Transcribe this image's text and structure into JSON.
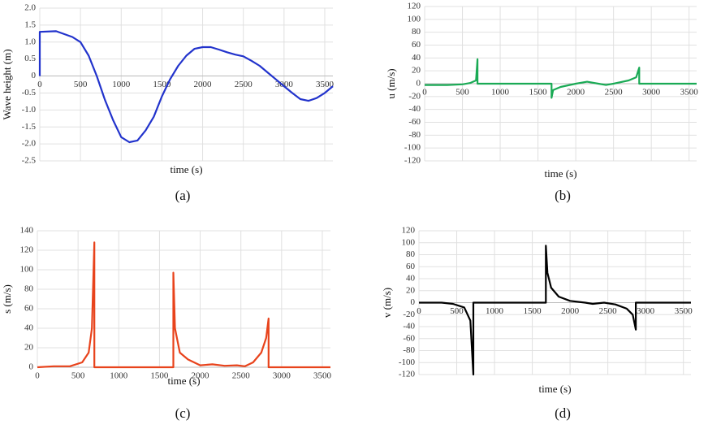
{
  "chart_data": [
    {
      "type": "line",
      "caption": "(a)",
      "ylabel": "Wave height (m)",
      "xlabel": "time (s)",
      "color": "#2233cc",
      "grid": true,
      "xlim": [
        0,
        3600
      ],
      "xticks": [
        0,
        500,
        1000,
        1500,
        2000,
        2500,
        3000,
        3500
      ],
      "ylim": [
        -2.5,
        2.0
      ],
      "yticks": [
        {
          "value": 2,
          "label": "2.0"
        },
        1.5,
        {
          "value": 1,
          "label": "1.0"
        },
        0.5,
        0,
        -0.5,
        {
          "value": -1,
          "label": "-1.0"
        },
        -1.5,
        {
          "value": -2,
          "label": "-2.0"
        },
        -2.5
      ],
      "x": [
        0,
        0,
        200,
        400,
        500,
        600,
        700,
        800,
        900,
        1000,
        1100,
        1200,
        1300,
        1400,
        1500,
        1600,
        1700,
        1800,
        1900,
        2000,
        2100,
        2200,
        2300,
        2400,
        2500,
        2600,
        2700,
        2800,
        2900,
        3000,
        3100,
        3200,
        3300,
        3400,
        3500,
        3600
      ],
      "values": [
        0,
        1.3,
        1.32,
        1.15,
        1.0,
        0.6,
        0,
        -0.7,
        -1.3,
        -1.8,
        -1.95,
        -1.9,
        -1.6,
        -1.2,
        -0.6,
        -0.1,
        0.3,
        0.6,
        0.8,
        0.85,
        0.85,
        0.78,
        0.7,
        0.63,
        0.58,
        0.45,
        0.3,
        0.1,
        -0.1,
        -0.3,
        -0.5,
        -0.68,
        -0.73,
        -0.65,
        -0.5,
        -0.3
      ]
    },
    {
      "type": "line",
      "caption": "(b)",
      "ylabel": "u (m/s)",
      "xlabel": "time (s)",
      "color": "#1aaa55",
      "grid": true,
      "xlim": [
        0,
        3600
      ],
      "xticks": [
        0,
        500,
        1000,
        1500,
        2000,
        2500,
        3000,
        3500
      ],
      "ylim": [
        -120,
        120
      ],
      "yticks": [
        120,
        100,
        80,
        60,
        40,
        20,
        0,
        -20,
        -40,
        -60,
        -80,
        -100,
        -120
      ],
      "x": [
        0,
        300,
        500,
        600,
        680,
        700,
        700,
        1680,
        1680,
        1700,
        1800,
        2000,
        2150,
        2300,
        2400,
        2500,
        2700,
        2800,
        2840,
        2840,
        3600
      ],
      "values": [
        -2,
        -2,
        -1,
        1,
        5,
        38,
        0,
        0,
        -22,
        -10,
        -5,
        0,
        3,
        0,
        -2,
        0,
        5,
        10,
        25,
        0,
        0
      ]
    },
    {
      "type": "line",
      "caption": "(c)",
      "ylabel": "s (m/s)",
      "xlabel": "time (s)",
      "color": "#e8431c",
      "grid": true,
      "xlim": [
        0,
        3600
      ],
      "xticks": [
        0,
        500,
        1000,
        1500,
        2000,
        2500,
        3000,
        3500
      ],
      "ylim": [
        0,
        140
      ],
      "yticks": [
        140,
        120,
        100,
        80,
        60,
        40,
        20,
        0
      ],
      "x": [
        0,
        200,
        400,
        550,
        630,
        670,
        700,
        700,
        1670,
        1670,
        1690,
        1750,
        1850,
        2000,
        2150,
        2300,
        2450,
        2550,
        2650,
        2750,
        2810,
        2840,
        2840,
        3600
      ],
      "values": [
        0,
        1,
        1,
        5,
        15,
        40,
        128,
        0,
        0,
        97,
        40,
        15,
        8,
        2,
        3,
        1.5,
        2,
        1,
        5,
        15,
        30,
        50,
        0,
        0
      ]
    },
    {
      "type": "line",
      "caption": "(d)",
      "ylabel": "v (m/s)",
      "xlabel": "time (s)",
      "color": "#000000",
      "grid": true,
      "xlim": [
        0,
        3600
      ],
      "xticks": [
        0,
        500,
        1000,
        1500,
        2000,
        2500,
        3000,
        3500
      ],
      "ylim": [
        -120,
        120
      ],
      "yticks": [
        120,
        100,
        80,
        60,
        40,
        20,
        0,
        -20,
        -40,
        -60,
        -80,
        -100,
        -120
      ],
      "x": [
        0,
        300,
        450,
        600,
        680,
        720,
        720,
        1680,
        1680,
        1700,
        1750,
        1850,
        2000,
        2200,
        2300,
        2450,
        2600,
        2750,
        2830,
        2870,
        2870,
        3600
      ],
      "values": [
        0,
        0,
        -2,
        -8,
        -30,
        -120,
        0,
        0,
        95,
        50,
        25,
        10,
        3,
        0,
        -2,
        0,
        -3,
        -10,
        -20,
        -45,
        0,
        0
      ]
    }
  ]
}
